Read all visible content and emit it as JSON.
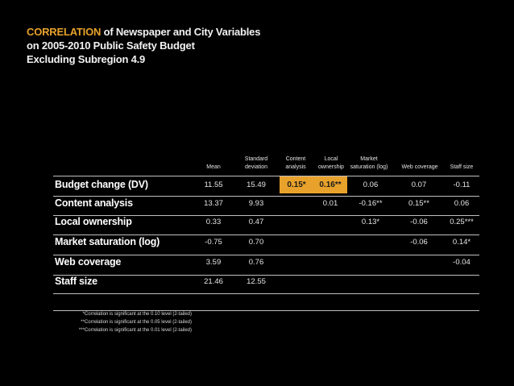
{
  "title": {
    "accent": "CORRELATION",
    "line1_rest": " of Newspaper and City Variables",
    "line2": "on 2005-2010 Public Safety Budget",
    "line3": "Excluding Subregion 4.9"
  },
  "columns": {
    "mean": "Mean",
    "std_a": "Standard",
    "std_b": "deviation",
    "content_a": "Content",
    "content_b": "analysis",
    "local_a": "Local",
    "local_b": "ownership",
    "market_a": "Market",
    "market_b": "saturation (log)",
    "web": "Web coverage",
    "staff": "Staff size"
  },
  "rows": [
    {
      "label": "Budget change (DV)",
      "mean": "11.55",
      "sd": "15.49",
      "content": "0.15*",
      "local": "0.16**",
      "market": "0.06",
      "web": "0.07",
      "staff": "-0.11"
    },
    {
      "label": "Content analysis",
      "mean": "13.37",
      "sd": "9.93",
      "content": "",
      "local": "0.01",
      "market": "-0.16**",
      "web": "0.15**",
      "staff": "0.06"
    },
    {
      "label": "Local ownership",
      "mean": "0.33",
      "sd": "0.47",
      "content": "",
      "local": "",
      "market": "0.13*",
      "web": "-0.06",
      "staff": "0.25***"
    },
    {
      "label": "Market saturation (log)",
      "mean": "-0.75",
      "sd": "0.70",
      "content": "",
      "local": "",
      "market": "",
      "web": "-0.06",
      "staff": "0.14*"
    },
    {
      "label": "Web coverage",
      "mean": "3.59",
      "sd": "0.76",
      "content": "",
      "local": "",
      "market": "",
      "web": "",
      "staff": "-0.04"
    },
    {
      "label": "Staff size",
      "mean": "21.46",
      "sd": "12.55",
      "content": "",
      "local": "",
      "market": "",
      "web": "",
      "staff": ""
    }
  ],
  "notes": [
    "*Correlation is significant at the 0.10 level (2-tailed)",
    "**Correlation is significant at the 0.05 level (2-tailed)",
    "***Correlation is significant at the 0.01 level (2-tailed)"
  ],
  "colors": {
    "accent": "#e8a22b",
    "background": "#000000",
    "text": "#ffffff"
  }
}
